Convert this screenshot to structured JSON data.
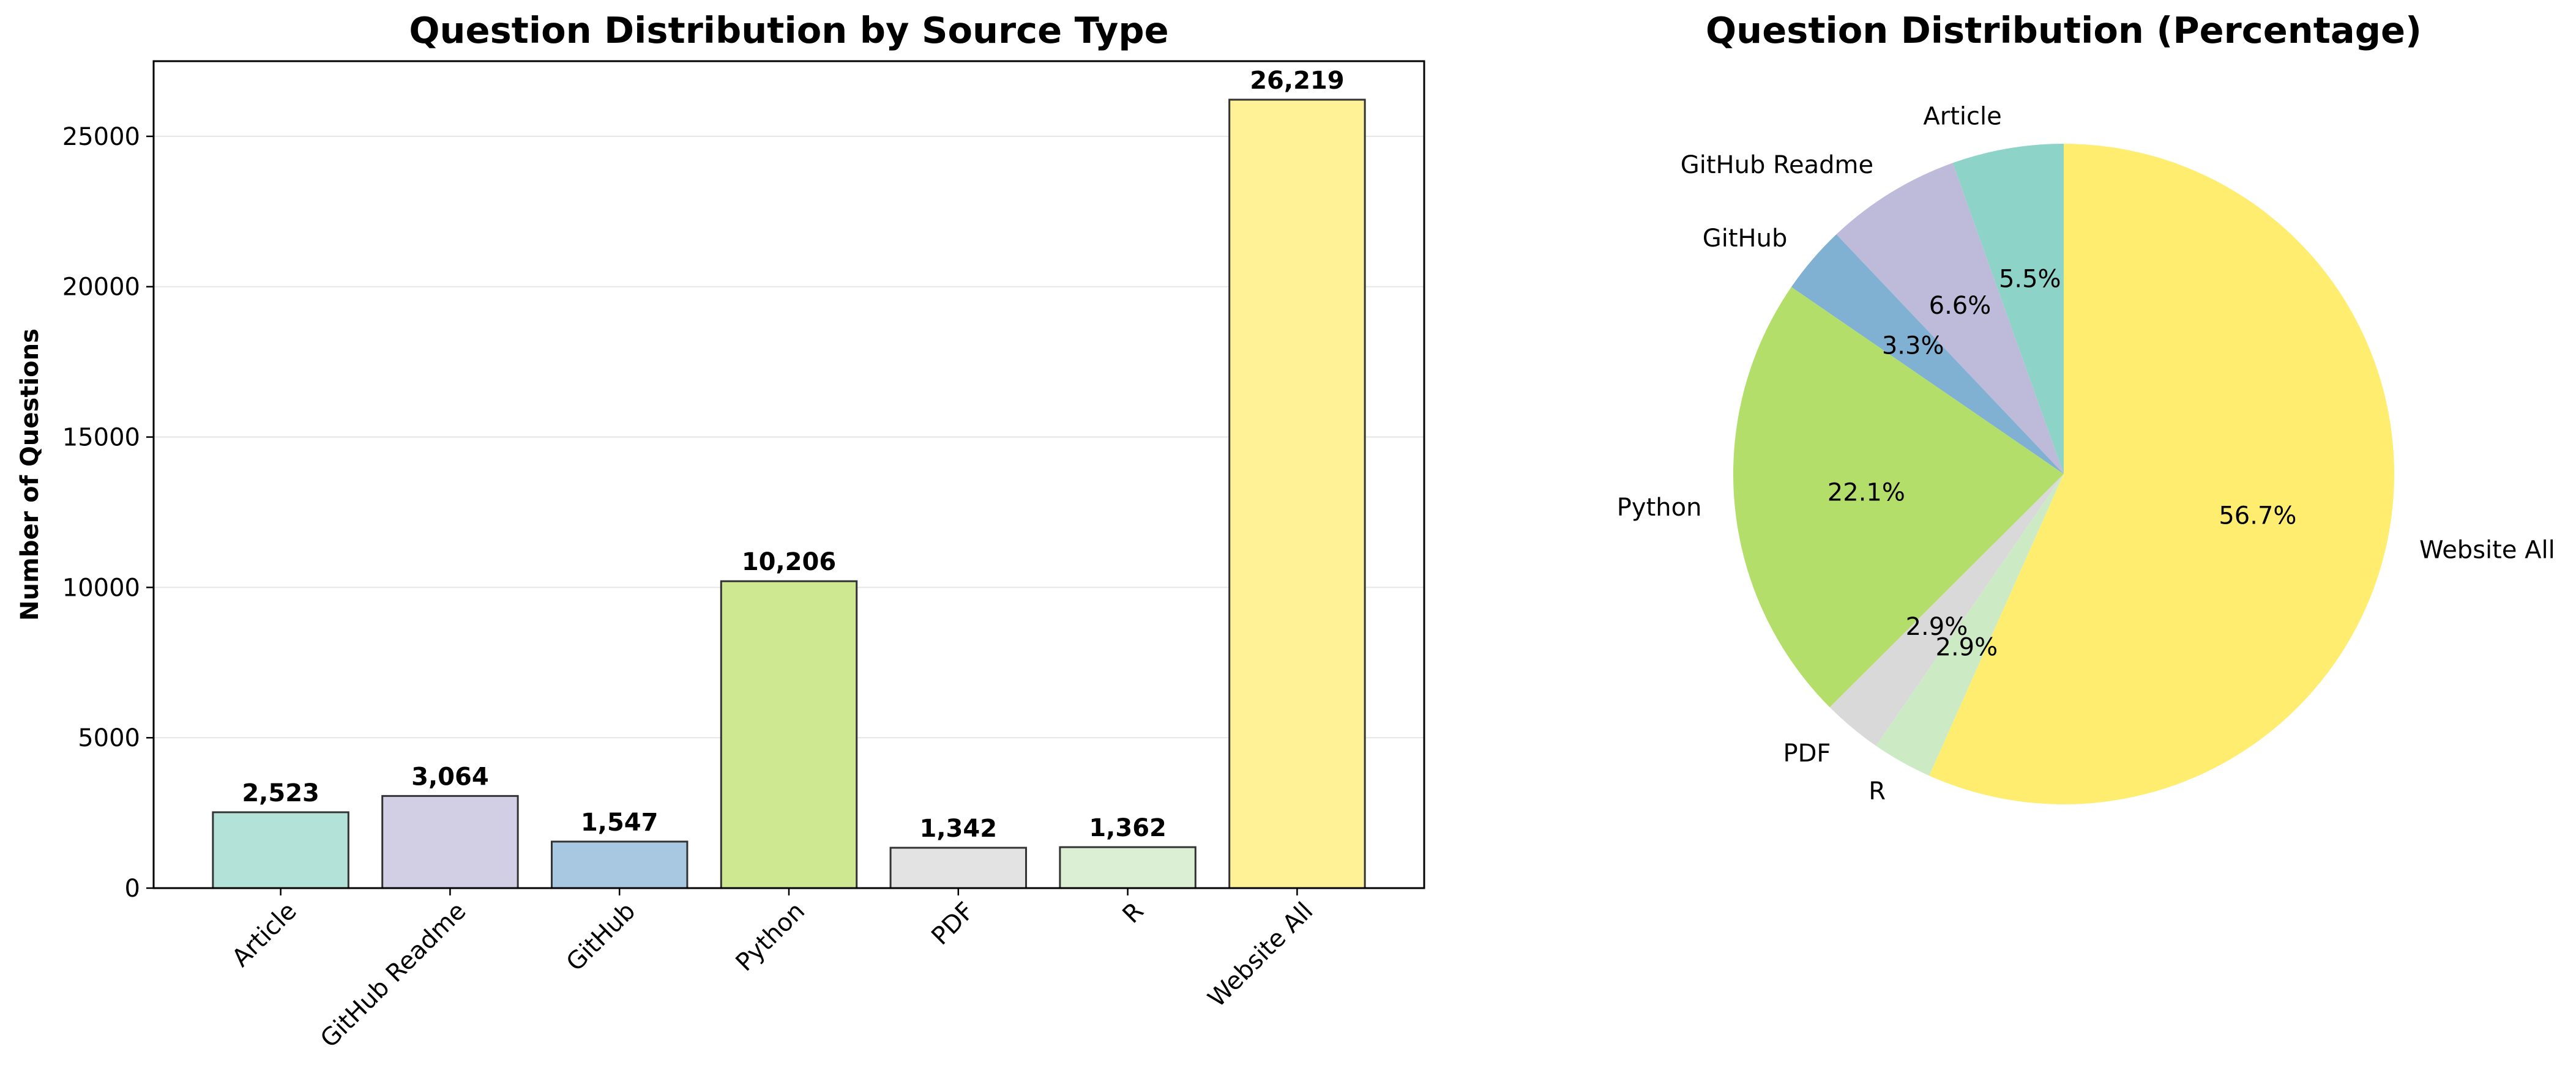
{
  "chart_data": [
    {
      "type": "bar",
      "title": "Question Distribution by Source Type",
      "xlabel": "",
      "ylabel": "Number of Questions",
      "categories": [
        "Article",
        "GitHub Readme",
        "GitHub",
        "Python",
        "PDF",
        "R",
        "Website All"
      ],
      "values": [
        2523,
        3064,
        1547,
        10206,
        1342,
        1362,
        26219
      ],
      "value_labels": [
        "2,523",
        "3,064",
        "1,547",
        "10,206",
        "1,342",
        "1,362",
        "26,219"
      ],
      "colors": [
        "#b3e2d8",
        "#d2cfe4",
        "#a8c7e0",
        "#cde891",
        "#e3e3e3",
        "#daefd4",
        "#fff195"
      ],
      "ylim": [
        0,
        27500
      ],
      "yticks": [
        0,
        5000,
        10000,
        15000,
        20000,
        25000
      ],
      "grid": "y"
    },
    {
      "type": "pie",
      "title": "Question Distribution (Percentage)",
      "labels": [
        "Article",
        "GitHub Readme",
        "GitHub",
        "Python",
        "PDF",
        "R",
        "Website All"
      ],
      "values": [
        2523,
        3064,
        1547,
        10206,
        1342,
        1362,
        26219
      ],
      "percent_labels": [
        "5.5%",
        "6.6%",
        "3.3%",
        "22.1%",
        "2.9%",
        "2.9%",
        "56.7%"
      ],
      "colors": [
        "#8dd3c7",
        "#bebada",
        "#80b1d3",
        "#b3de69",
        "#d9d9d9",
        "#ccebc5",
        "#ffed6f"
      ],
      "startangle": 90,
      "direction": "counterclockwise"
    }
  ]
}
